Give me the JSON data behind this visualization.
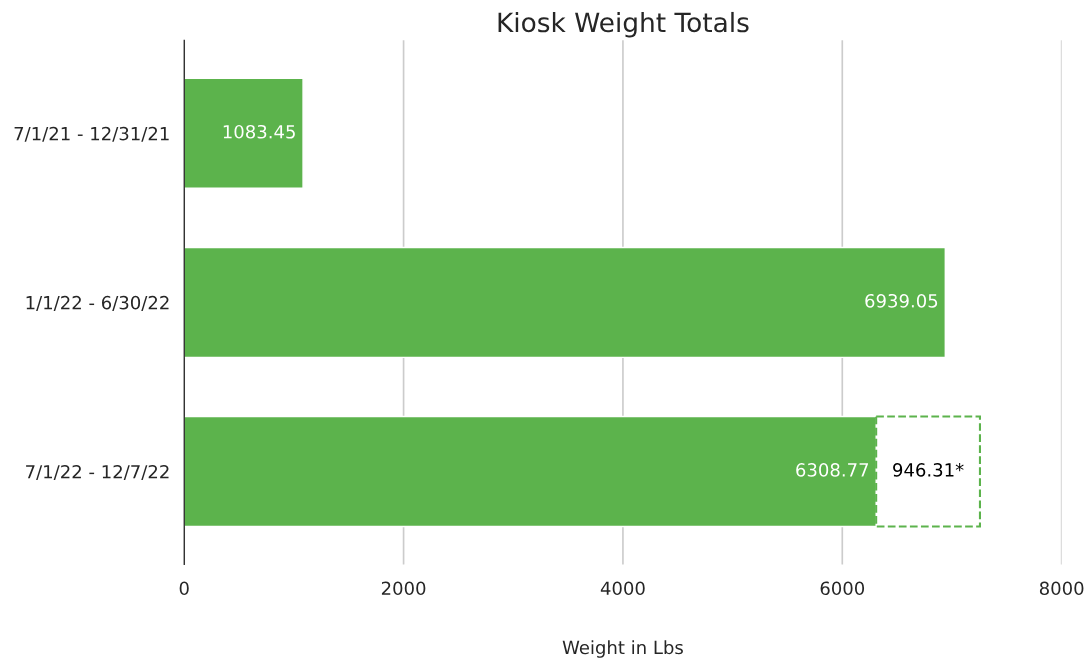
{
  "chart_data": {
    "type": "bar",
    "orientation": "horizontal",
    "stacked": true,
    "title": "Kiosk Weight Totals",
    "xlabel": "Weight in Lbs",
    "categories": [
      "7/1/21 - 12/31/21",
      "1/1/22 - 6/30/22",
      "7/1/22 - 12/7/22"
    ],
    "series": [
      {
        "color": "#5cb34c",
        "values": [
          1083.45,
          6939.05,
          6308.77
        ],
        "value_labels": [
          "1083.45",
          "6939.05",
          "6308.77"
        ]
      },
      {
        "color": "#5cb34c",
        "line_style": "dashed",
        "values": [
          null,
          null,
          946.31
        ],
        "value_labels": [
          null,
          null,
          "946.31*"
        ]
      }
    ],
    "xlim": [
      0,
      8000
    ],
    "xticks": [
      0,
      2000,
      4000,
      6000,
      8000
    ],
    "grid": "x",
    "legend": false
  }
}
